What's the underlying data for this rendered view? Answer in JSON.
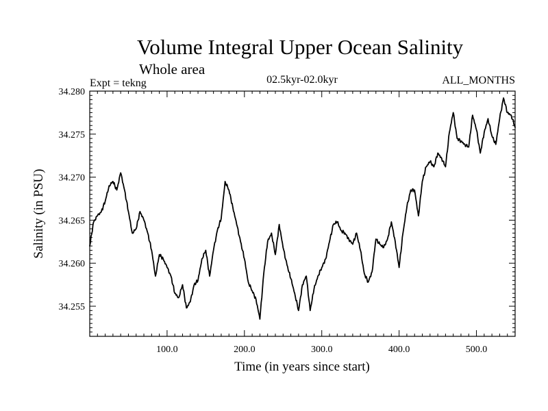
{
  "chart_data": {
    "type": "line",
    "title": "Volume Integral Upper Ocean Salinity",
    "subtitle": "Whole area",
    "left_label": "Expt = tekng",
    "center_label": "02.5kyr-02.0kyr",
    "right_label": "ALL_MONTHS",
    "xlabel": "Time (in years since start)",
    "ylabel": "Salinity (in PSU)",
    "xlim": [
      0,
      550
    ],
    "ylim": [
      34.2515,
      34.28
    ],
    "x_ticks": [
      100,
      200,
      300,
      400,
      500
    ],
    "x_tick_labels": [
      "100.0",
      "200.0",
      "300.0",
      "400.0",
      "500.0"
    ],
    "y_ticks": [
      34.255,
      34.26,
      34.265,
      34.27,
      34.275,
      34.28
    ],
    "y_tick_labels": [
      "34.255",
      "34.260",
      "34.265",
      "34.270",
      "34.275",
      "34.280"
    ],
    "series": [
      {
        "name": "salinity",
        "x": [
          0,
          5,
          10,
          15,
          20,
          25,
          30,
          35,
          40,
          45,
          50,
          55,
          60,
          65,
          70,
          75,
          80,
          85,
          90,
          95,
          100,
          105,
          110,
          115,
          120,
          125,
          130,
          135,
          140,
          145,
          150,
          155,
          160,
          165,
          170,
          175,
          180,
          185,
          190,
          195,
          200,
          205,
          210,
          215,
          220,
          225,
          230,
          235,
          240,
          245,
          250,
          255,
          260,
          265,
          270,
          275,
          280,
          285,
          290,
          295,
          300,
          305,
          310,
          315,
          320,
          325,
          330,
          335,
          340,
          345,
          350,
          355,
          360,
          365,
          370,
          375,
          380,
          385,
          390,
          395,
          400,
          405,
          410,
          415,
          420,
          425,
          430,
          435,
          440,
          445,
          450,
          455,
          460,
          465,
          470,
          475,
          480,
          485,
          490,
          495,
          500,
          505,
          510,
          515,
          520,
          525,
          530,
          535,
          540,
          545,
          550
        ],
        "values": [
          34.262,
          34.2648,
          34.2655,
          34.266,
          34.2672,
          34.269,
          34.2695,
          34.2685,
          34.2705,
          34.2685,
          34.266,
          34.2635,
          34.264,
          34.266,
          34.265,
          34.2635,
          34.2615,
          34.2585,
          34.261,
          34.2605,
          34.2595,
          34.2585,
          34.2565,
          34.256,
          34.2575,
          34.2548,
          34.2555,
          34.2575,
          34.258,
          34.2605,
          34.2615,
          34.2585,
          34.2615,
          34.2638,
          34.2652,
          34.2695,
          34.2685,
          34.2665,
          34.2645,
          34.2625,
          34.2605,
          34.2578,
          34.2568,
          34.2558,
          34.2535,
          34.2588,
          34.2625,
          34.2635,
          34.261,
          34.2645,
          34.2618,
          34.2598,
          34.2582,
          34.2565,
          34.2545,
          34.2575,
          34.2585,
          34.2545,
          34.257,
          34.2585,
          34.2595,
          34.2605,
          34.2625,
          34.2645,
          34.2648,
          34.2638,
          34.2635,
          34.2628,
          34.2622,
          34.2635,
          34.2615,
          34.2588,
          34.2578,
          34.259,
          34.2628,
          34.2622,
          34.2618,
          34.2628,
          34.2648,
          34.2625,
          34.2595,
          34.2635,
          34.2665,
          34.2685,
          34.2685,
          34.2655,
          34.2695,
          34.2712,
          34.2718,
          34.2712,
          34.2728,
          34.2722,
          34.2712,
          34.2752,
          34.2775,
          34.2745,
          34.2742,
          34.2738,
          34.2735,
          34.2772,
          34.2755,
          34.2728,
          34.2752,
          34.2768,
          34.2748,
          34.2738,
          34.2768,
          34.2792,
          34.2775,
          34.2772,
          34.2758
        ]
      }
    ]
  }
}
